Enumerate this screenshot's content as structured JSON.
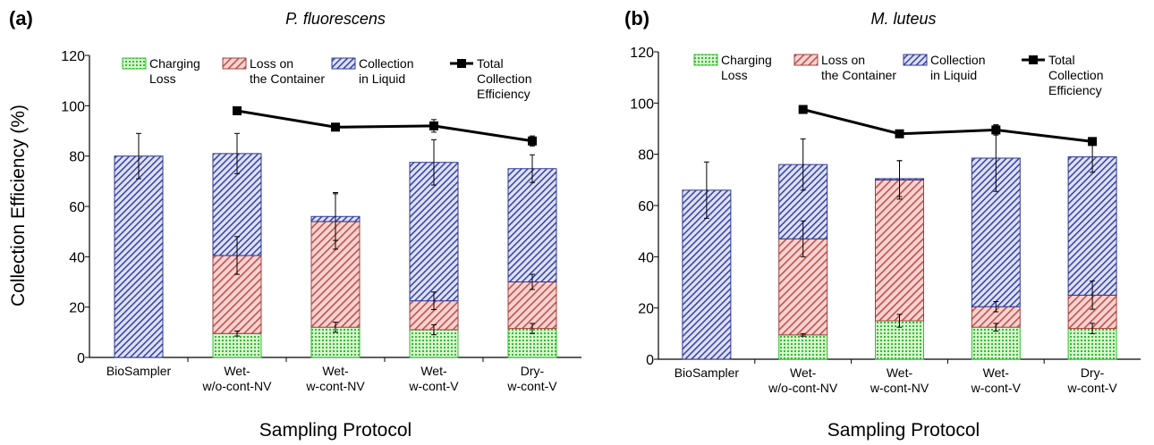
{
  "figure": {
    "ylabel": "Collection Efficiency (%)",
    "xlabel": "Sampling Protocol"
  },
  "legend": [
    {
      "lines": [
        "Charging",
        "Loss"
      ],
      "kind": "green"
    },
    {
      "lines": [
        "Loss on",
        "the Container"
      ],
      "kind": "red"
    },
    {
      "lines": [
        "Collection",
        "in Liquid"
      ],
      "kind": "blue"
    },
    {
      "lines": [
        "Total",
        "Collection",
        "Efficiency"
      ],
      "kind": "total"
    }
  ],
  "colors": {
    "green_fill": "#d9f5d0",
    "green_dots": "#2fbf2f",
    "red_fill": "#f6d3d0",
    "red_lines": "#c0504d",
    "red_edge": "#a0403d",
    "blue_fill": "#dfe2f5",
    "blue_lines": "#3c46a8",
    "blue_edge": "#2e3890",
    "total_line": "#000000",
    "axis": "#000000"
  },
  "chart_data": [
    {
      "type": "bar",
      "subtype": "stacked",
      "panel_label": "(a)",
      "title": "P. fluorescens",
      "categories": [
        [
          "BioSampler"
        ],
        [
          "Wet-",
          "w/o-cont-NV"
        ],
        [
          "Wet-",
          "w-cont-NV"
        ],
        [
          "Wet-",
          "w-cont-V"
        ],
        [
          "Dry-",
          "w-cont-V"
        ]
      ],
      "ylim": [
        0,
        120
      ],
      "yticks": [
        0,
        20,
        40,
        60,
        80,
        100,
        120
      ],
      "series": [
        {
          "name": "Charging Loss",
          "kind": "green",
          "values": [
            0,
            9.5,
            12,
            11,
            11.5
          ],
          "errors": [
            0,
            1,
            2,
            2,
            2
          ]
        },
        {
          "name": "Loss on the Container",
          "kind": "red",
          "values": [
            0,
            31,
            42,
            11.5,
            18.5
          ],
          "errors": [
            0,
            7.5,
            11,
            3.5,
            3
          ]
        },
        {
          "name": "Collection in Liquid",
          "kind": "blue",
          "values": [
            80,
            40.5,
            2,
            55,
            45
          ],
          "errors": [
            9,
            8,
            9.5,
            9,
            5.5
          ]
        }
      ],
      "total": {
        "name": "Total Collection Efficiency",
        "indices": [
          1,
          2,
          3,
          4
        ],
        "values": [
          98,
          91.5,
          92,
          86
        ],
        "errors": [
          0,
          0,
          2.5,
          2
        ]
      }
    },
    {
      "type": "bar",
      "subtype": "stacked",
      "panel_label": "(b)",
      "title": "M. luteus",
      "categories": [
        [
          "BioSampler"
        ],
        [
          "Wet-",
          "w/o-cont-NV"
        ],
        [
          "Wet-",
          "w-cont-NV"
        ],
        [
          "Wet-",
          "w-cont-V"
        ],
        [
          "Dry-",
          "w-cont-V"
        ]
      ],
      "ylim": [
        0,
        120
      ],
      "yticks": [
        0,
        20,
        40,
        60,
        80,
        100,
        120
      ],
      "series": [
        {
          "name": "Charging Loss",
          "kind": "green",
          "values": [
            0,
            9.5,
            15,
            12.5,
            12
          ],
          "errors": [
            0,
            0.5,
            2.5,
            1.5,
            2
          ]
        },
        {
          "name": "Loss on the Container",
          "kind": "red",
          "values": [
            0,
            37.5,
            55,
            8,
            13
          ],
          "errors": [
            0,
            7,
            7.5,
            2,
            5.5
          ]
        },
        {
          "name": "Collection in Liquid",
          "kind": "blue",
          "values": [
            66,
            29,
            0.5,
            58,
            54
          ],
          "errors": [
            11,
            10,
            7,
            13,
            6
          ]
        }
      ],
      "total": {
        "name": "Total Collection Efficiency",
        "indices": [
          1,
          2,
          3,
          4
        ],
        "values": [
          97.5,
          88,
          89.5,
          85
        ],
        "errors": [
          0,
          0,
          2,
          1.5
        ]
      }
    }
  ]
}
